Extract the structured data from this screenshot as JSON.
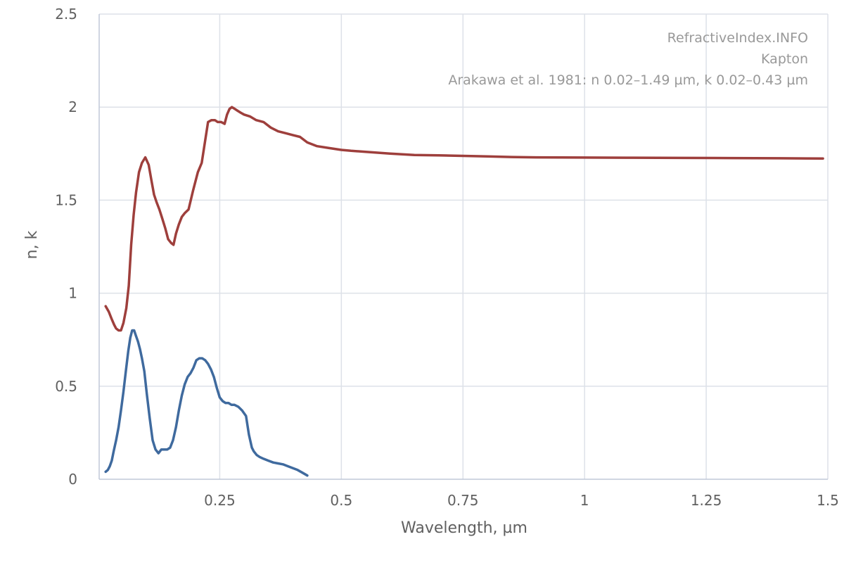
{
  "chart_data": {
    "type": "line",
    "credits": [
      "RefractiveIndex.INFO",
      "Kapton",
      "Arakawa et al. 1981: n 0.02–1.49 µm, k 0.02–0.43 µm"
    ],
    "xlabel": "Wavelength, µm",
    "ylabel": "n, k",
    "xlim": [
      0.0,
      1.5
    ],
    "ylim": [
      0,
      2.5
    ],
    "x_ticks": [
      0.25,
      0.5,
      0.75,
      1,
      1.25,
      1.5
    ],
    "x_tick_labels": [
      "0.25",
      "0.5",
      "0.75",
      "1",
      "1.25",
      "1.5"
    ],
    "y_ticks": [
      0,
      0.5,
      1,
      1.5,
      2,
      2.5
    ],
    "y_tick_labels": [
      "0",
      "0.5",
      "1",
      "1.5",
      "2",
      "2.5"
    ],
    "grid": true,
    "colors": {
      "n": "#9e3f3c",
      "k": "#3f6a9e",
      "grid": "#dde1e8",
      "axis": "#c0c8d8"
    },
    "series": [
      {
        "key": "n",
        "color": "#9e3f3c",
        "x": [
          0.0155,
          0.022,
          0.028,
          0.033,
          0.037,
          0.042,
          0.047,
          0.052,
          0.058,
          0.063,
          0.068,
          0.073,
          0.078,
          0.084,
          0.09,
          0.097,
          0.104,
          0.11,
          0.115,
          0.12,
          0.126,
          0.132,
          0.138,
          0.144,
          0.15,
          0.155,
          0.16,
          0.166,
          0.172,
          0.178,
          0.186,
          0.195,
          0.205,
          0.213,
          0.22,
          0.226,
          0.233,
          0.24,
          0.246,
          0.253,
          0.26,
          0.265,
          0.27,
          0.275,
          0.281,
          0.287,
          0.293,
          0.3,
          0.312,
          0.325,
          0.34,
          0.355,
          0.37,
          0.385,
          0.4,
          0.415,
          0.43,
          0.45,
          0.475,
          0.5,
          0.52,
          0.55,
          0.6,
          0.65,
          0.7,
          0.75,
          0.8,
          0.85,
          0.9,
          1.0,
          1.1,
          1.2,
          1.3,
          1.4,
          1.49
        ],
        "values": [
          0.93,
          0.9,
          0.86,
          0.83,
          0.81,
          0.8,
          0.8,
          0.84,
          0.92,
          1.04,
          1.26,
          1.42,
          1.54,
          1.65,
          1.7,
          1.73,
          1.69,
          1.6,
          1.53,
          1.49,
          1.45,
          1.4,
          1.35,
          1.29,
          1.27,
          1.26,
          1.32,
          1.37,
          1.41,
          1.43,
          1.45,
          1.55,
          1.65,
          1.7,
          1.82,
          1.92,
          1.93,
          1.93,
          1.92,
          1.92,
          1.91,
          1.96,
          1.99,
          2.0,
          1.99,
          1.98,
          1.97,
          1.96,
          1.95,
          1.93,
          1.92,
          1.89,
          1.87,
          1.86,
          1.85,
          1.84,
          1.81,
          1.79,
          1.78,
          1.77,
          1.765,
          1.76,
          1.75,
          1.743,
          1.741,
          1.738,
          1.735,
          1.732,
          1.73,
          1.729,
          1.728,
          1.727,
          1.726,
          1.725,
          1.724
        ]
      },
      {
        "key": "k",
        "color": "#3f6a9e",
        "x": [
          0.0155,
          0.02,
          0.024,
          0.028,
          0.032,
          0.037,
          0.042,
          0.047,
          0.052,
          0.057,
          0.062,
          0.066,
          0.07,
          0.074,
          0.078,
          0.082,
          0.086,
          0.09,
          0.095,
          0.1,
          0.106,
          0.112,
          0.118,
          0.124,
          0.13,
          0.136,
          0.142,
          0.148,
          0.154,
          0.16,
          0.166,
          0.172,
          0.178,
          0.184,
          0.19,
          0.196,
          0.202,
          0.208,
          0.214,
          0.22,
          0.226,
          0.232,
          0.238,
          0.244,
          0.25,
          0.256,
          0.262,
          0.268,
          0.274,
          0.28,
          0.288,
          0.296,
          0.304,
          0.31,
          0.316,
          0.32,
          0.326,
          0.332,
          0.34,
          0.35,
          0.36,
          0.37,
          0.38,
          0.39,
          0.4,
          0.41,
          0.42,
          0.43
        ],
        "values": [
          0.04,
          0.05,
          0.07,
          0.1,
          0.15,
          0.21,
          0.28,
          0.37,
          0.47,
          0.58,
          0.69,
          0.76,
          0.8,
          0.8,
          0.77,
          0.74,
          0.7,
          0.65,
          0.58,
          0.46,
          0.33,
          0.21,
          0.16,
          0.14,
          0.16,
          0.16,
          0.16,
          0.17,
          0.21,
          0.28,
          0.37,
          0.45,
          0.51,
          0.55,
          0.57,
          0.6,
          0.64,
          0.65,
          0.65,
          0.64,
          0.62,
          0.59,
          0.55,
          0.49,
          0.44,
          0.42,
          0.41,
          0.41,
          0.4,
          0.4,
          0.39,
          0.37,
          0.34,
          0.24,
          0.17,
          0.15,
          0.13,
          0.12,
          0.11,
          0.1,
          0.09,
          0.085,
          0.08,
          0.07,
          0.06,
          0.05,
          0.035,
          0.02
        ]
      }
    ]
  }
}
